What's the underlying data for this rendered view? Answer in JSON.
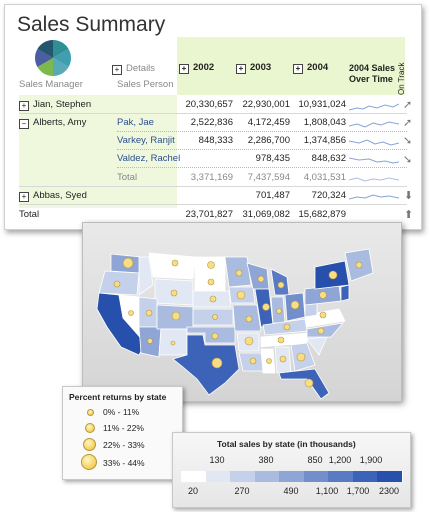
{
  "report": {
    "title": "Sales Summary",
    "headers": {
      "sales_manager": "Sales Manager",
      "details": "Details",
      "sales_person": "Sales Person",
      "years": [
        "2002",
        "2003",
        "2004"
      ],
      "over_time": "2004 Sales Over Time",
      "on_track": "On Track"
    },
    "rows": [
      {
        "manager": "Jian, Stephen",
        "person": "",
        "v2002": "20,330,657",
        "v2003": "22,930,001",
        "v2004": "10,931,024"
      },
      {
        "manager": "Alberts, Amy",
        "person": "Pak, Jae",
        "v2002": "2,522,836",
        "v2003": "4,172,459",
        "v2004": "1,808,043"
      },
      {
        "manager": "",
        "person": "Varkey, Ranjit",
        "v2002": "848,333",
        "v2003": "2,286,700",
        "v2004": "1,374,856"
      },
      {
        "manager": "",
        "person": "Valdez, Rachel",
        "v2002": "",
        "v2003": "978,435",
        "v2004": "848,632"
      },
      {
        "manager": "",
        "person": "Total",
        "v2002": "3,371,169",
        "v2003": "7,437,594",
        "v2004": "4,031,531"
      },
      {
        "manager": "Abbas, Syed",
        "person": "",
        "v2002": "",
        "v2003": "701,487",
        "v2004": "720,324"
      }
    ],
    "total": {
      "label": "Total",
      "v2002": "23,701,827",
      "v2003": "31,069,082",
      "v2004": "15,682,879"
    },
    "expand_icons": {
      "plus": "+",
      "minus": "−"
    },
    "pie_colors": [
      "#2f8f95",
      "#3f9fb0",
      "#5aa9b8",
      "#7cb84a",
      "#4a5fa3",
      "#25566f"
    ],
    "on_track_icons": [
      "arrow-up-right",
      "arrow-up-right",
      "arrow-down-right",
      "arrow-down-right",
      "arrow-down",
      "arrow-up"
    ]
  },
  "legend_returns": {
    "title": "Percent returns by state",
    "items": [
      "0% - 11%",
      "11% - 22%",
      "22% - 33%",
      "33% - 44%"
    ]
  },
  "legend_sales": {
    "title": "Total sales by state (in thousands)",
    "top_labels": [
      "130",
      "380",
      "850",
      "1,200",
      "1,900"
    ],
    "bottom_labels": [
      "20",
      "270",
      "490",
      "1,100",
      "1,700",
      "2300"
    ],
    "colors": [
      "#ffffff",
      "#e1e7f3",
      "#c5d1ea",
      "#aabbe0",
      "#8ea5d6",
      "#728fcc",
      "#5a7bc4",
      "#3c63b8",
      "#274fac"
    ]
  }
}
